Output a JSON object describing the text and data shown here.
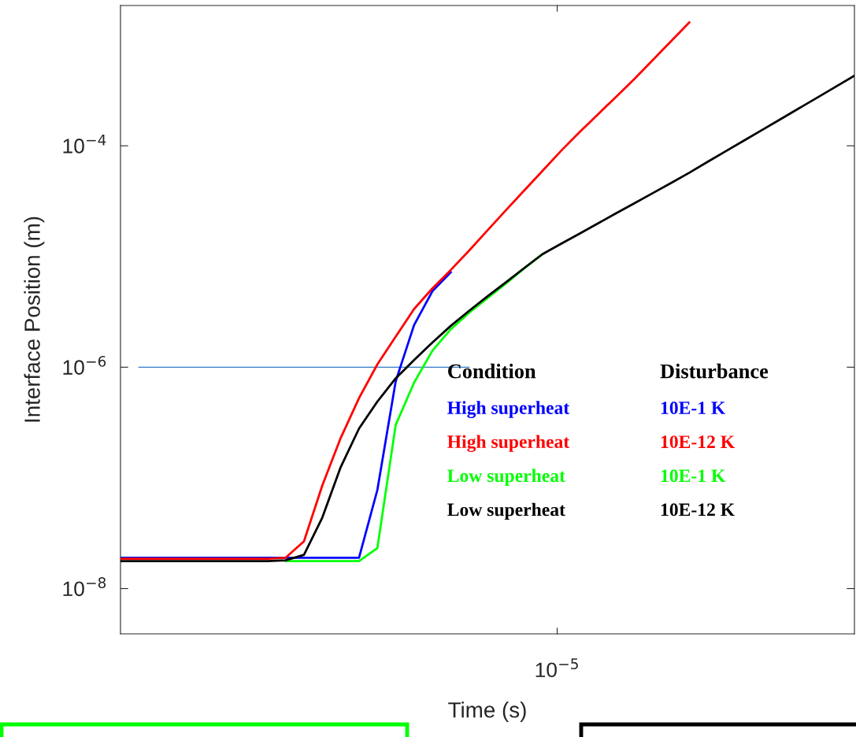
{
  "chart_data": {
    "type": "line",
    "xlabel": "Time (s)",
    "ylabel": "Interface Position (m)",
    "log": "y",
    "grid": false,
    "tick_labels": "y",
    "annotations": [
      "10$^{−5}$"
    ],
    "categories": [
      null,
      null,
      null,
      null,
      null,
      null,
      null,
      null,
      null,
      null,
      null,
      null,
      null,
      null,
      null,
      null,
      null,
      null,
      null,
      null,
      null,
      null,
      null,
      null,
      null,
      null,
      null,
      null,
      null,
      null,
      null,
      null,
      null,
      null,
      null,
      null,
      null,
      null,
      null,
      null,
      null
    ],
    "ylim": [
      3.9e-09,
      0.00185
    ],
    "yticks": [
      {
        "value": 1e-08,
        "label": "10$^{−8}$"
      },
      {
        "value": 1e-06,
        "label": "10$^{−6}$"
      },
      {
        "value": 0.0001,
        "label": "10$^{−4}$"
      }
    ],
    "legend_title": "Condition\tDisturbance",
    "line_style": "solid",
    "series": [
      {
        "color": "#2f7bc4",
        "values": [
          null,
          1e-06,
          1e-06,
          1e-06,
          1e-06,
          1e-06,
          1e-06,
          1e-06,
          1e-06,
          1e-06,
          1e-06,
          1e-06,
          1e-06,
          1e-06,
          1e-06,
          1e-06,
          1e-06,
          1e-06,
          1e-06,
          1e-06,
          null,
          null,
          null,
          null,
          null,
          null,
          null,
          null,
          null,
          null,
          null,
          null,
          null,
          null,
          null,
          null,
          null,
          null,
          null,
          null,
          null
        ]
      },
      {
        "name": "High superheat\t10E-1 K",
        "color": "#0000ff",
        "values": [
          1.9e-08,
          1.9e-08,
          1.9e-08,
          1.9e-08,
          1.9e-08,
          1.9e-08,
          1.9e-08,
          1.9e-08,
          1.9e-08,
          1.9e-08,
          1.9e-08,
          1.9e-08,
          1.9e-08,
          1.9e-08,
          7.78e-08,
          7.46e-07,
          2.4e-06,
          4.86e-06,
          7.2e-06,
          null,
          null,
          null,
          null,
          null,
          null,
          null,
          null,
          null,
          null,
          null,
          null,
          null,
          null,
          null,
          null,
          null,
          null,
          null,
          null,
          null,
          null
        ]
      },
      {
        "name": "High superheat\t10E-12 K",
        "color": "#ff0000",
        "values": [
          1.86e-08,
          1.86e-08,
          1.86e-08,
          1.86e-08,
          1.86e-08,
          1.86e-08,
          1.86e-08,
          1.86e-08,
          1.86e-08,
          1.9e-08,
          2.67e-08,
          8.55e-08,
          2.29e-07,
          5.25e-07,
          1.06e-06,
          1.89e-06,
          3.35e-06,
          5.15e-06,
          7.55e-06,
          1.13e-05,
          1.72e-05,
          2.61e-05,
          3.94e-05,
          5.94e-05,
          8.96e-05,
          0.000132,
          0.000191,
          0.000276,
          0.0004,
          0.000592,
          0.000878,
          0.0013,
          null,
          null,
          null,
          null,
          null,
          null,
          null,
          null,
          null
        ]
      },
      {
        "name": "Low superheat\t10E-1 K",
        "color": "#00ff00",
        "values": [
          null,
          null,
          null,
          null,
          null,
          null,
          null,
          null,
          null,
          1.77e-08,
          1.77e-08,
          1.77e-08,
          1.77e-08,
          1.77e-08,
          2.32e-08,
          3.01e-07,
          7.24e-07,
          1.41e-06,
          2.2e-06,
          3.1e-06,
          4.2e-06,
          5.7e-06,
          7.8e-06,
          1.05e-05,
          null,
          null,
          null,
          null,
          null,
          null,
          null,
          null,
          null,
          null,
          null,
          null,
          null,
          null,
          null,
          null,
          null
        ]
      },
      {
        "name": "Low superheat\t10E-12 K",
        "color": "#000000",
        "values": [
          1.77e-08,
          1.77e-08,
          1.77e-08,
          1.77e-08,
          1.77e-08,
          1.77e-08,
          1.77e-08,
          1.77e-08,
          1.77e-08,
          1.8e-08,
          2.02e-08,
          4.38e-08,
          1.25e-07,
          2.79e-07,
          4.89e-07,
          7.94e-07,
          1.16e-06,
          1.67e-06,
          2.36e-06,
          3.23e-06,
          4.36e-06,
          5.84e-06,
          7.85e-06,
          1.05e-05,
          1.3e-05,
          1.6e-05,
          1.98e-05,
          2.45e-05,
          3.02e-05,
          3.73e-05,
          4.61e-05,
          5.71e-05,
          7.16e-05,
          8.95e-05,
          0.000112,
          0.00014,
          0.000175,
          0.000219,
          0.000274,
          0.000343,
          0.000429
        ]
      }
    ]
  }
}
